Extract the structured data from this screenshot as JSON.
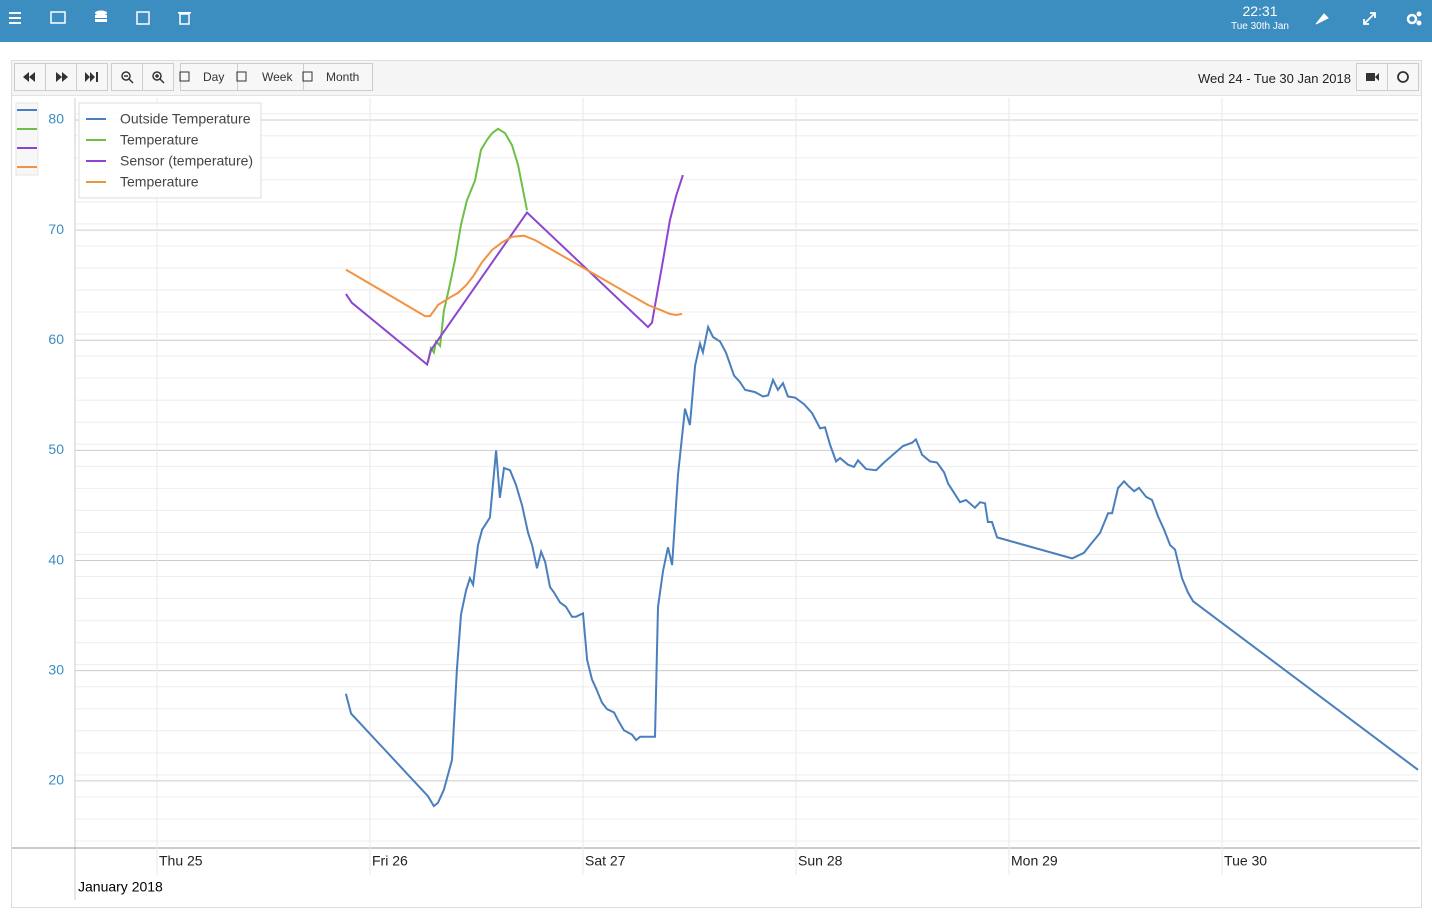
{
  "header": {
    "time": "22:31",
    "date": "Tue 30th Jan"
  },
  "toolbar": {
    "buttons": [
      "Day",
      "Week",
      "Month"
    ],
    "range": "Wed 24 - Tue 30 Jan 2018"
  },
  "chart_data": {
    "type": "line",
    "x_axis_label": "January 2018",
    "xlim": [
      24.615,
      30.92
    ],
    "xticks": [
      {
        "value": 25,
        "label": "Thu 25"
      },
      {
        "value": 26,
        "label": "Fri 26"
      },
      {
        "value": 27,
        "label": "Sat 27"
      },
      {
        "value": 28,
        "label": "Sun 28"
      },
      {
        "value": 29,
        "label": "Mon 29"
      },
      {
        "value": 30,
        "label": "Tue 30"
      }
    ],
    "ylim": [
      13.9,
      82
    ],
    "yticks": [
      20,
      30,
      40,
      50,
      60,
      70,
      80
    ],
    "grid": true,
    "legend": "top-left",
    "series": [
      {
        "name": "Outside Temperature",
        "color": "#4a7fbd",
        "x": [
          25.887,
          25.911,
          26.272,
          26.3,
          26.319,
          26.347,
          26.385,
          26.408,
          26.427,
          26.451,
          26.469,
          26.484,
          26.507,
          26.526,
          26.563,
          26.592,
          26.61,
          26.629,
          26.657,
          26.685,
          26.714,
          26.742,
          26.761,
          26.784,
          26.803,
          26.822,
          26.845,
          26.864,
          26.892,
          26.92,
          26.948,
          26.967,
          27.0,
          27.019,
          27.042,
          27.061,
          27.089,
          27.113,
          27.146,
          27.164,
          27.192,
          27.23,
          27.249,
          27.268,
          27.338,
          27.352,
          27.376,
          27.399,
          27.418,
          27.446,
          27.479,
          27.502,
          27.526,
          27.549,
          27.563,
          27.587,
          27.61,
          27.643,
          27.671,
          27.709,
          27.737,
          27.761,
          27.808,
          27.845,
          27.869,
          27.892,
          27.915,
          27.939,
          27.962,
          27.995,
          28.038,
          28.075,
          28.113,
          28.136,
          28.16,
          28.188,
          28.207,
          28.244,
          28.272,
          28.291,
          28.329,
          28.376,
          28.413,
          28.455,
          28.502,
          28.545,
          28.563,
          28.592,
          28.629,
          28.662,
          28.695,
          28.714,
          28.737,
          28.77,
          28.798,
          28.84,
          28.864,
          28.887,
          28.901,
          28.92,
          28.944,
          29.296,
          29.352,
          29.38,
          29.427,
          29.465,
          29.484,
          29.512,
          29.54,
          29.559,
          29.587,
          29.61,
          29.643,
          29.671,
          29.7,
          29.728,
          29.756,
          29.779,
          29.812,
          29.84,
          29.864,
          30.92
        ],
        "values": [
          27.9,
          26.1,
          18.6,
          17.7,
          18.0,
          19.2,
          21.9,
          30.1,
          35.1,
          37.3,
          38.4,
          37.8,
          41.4,
          42.8,
          43.9,
          50.0,
          45.7,
          48.4,
          48.2,
          46.9,
          45.0,
          42.5,
          41.4,
          39.3,
          40.8,
          39.9,
          37.6,
          37.1,
          36.2,
          35.8,
          34.9,
          34.9,
          35.2,
          31.0,
          29.2,
          28.4,
          27.1,
          26.5,
          26.2,
          25.5,
          24.6,
          24.2,
          23.7,
          24.0,
          24.0,
          35.8,
          39.1,
          41.2,
          39.6,
          47.8,
          53.8,
          52.3,
          57.7,
          59.7,
          58.9,
          61.2,
          60.3,
          59.9,
          58.9,
          56.8,
          56.2,
          55.5,
          55.3,
          54.9,
          55.0,
          56.4,
          55.5,
          56.1,
          54.9,
          54.8,
          54.2,
          53.4,
          52.0,
          52.1,
          50.5,
          49.0,
          49.3,
          48.7,
          48.5,
          49.1,
          48.3,
          48.2,
          48.9,
          49.6,
          50.4,
          50.7,
          51.0,
          49.6,
          49.0,
          48.9,
          48.0,
          47.0,
          46.3,
          45.3,
          45.5,
          44.8,
          45.3,
          45.2,
          43.5,
          43.5,
          42.1,
          40.2,
          40.7,
          41.4,
          42.5,
          44.3,
          44.3,
          46.6,
          47.2,
          46.8,
          46.3,
          46.6,
          45.8,
          45.5,
          44.0,
          42.8,
          41.4,
          41.0,
          38.4,
          37.1,
          36.3,
          21.0
        ]
      },
      {
        "name": "Temperature",
        "color": "#6cbf47",
        "x": [
          26.272,
          26.286,
          26.3,
          26.31,
          26.329,
          26.347,
          26.371,
          26.399,
          26.427,
          26.455,
          26.493,
          26.521,
          26.549,
          26.573,
          26.601,
          26.634,
          26.667,
          26.695,
          26.737
        ],
        "values": [
          58.0,
          59.3,
          58.9,
          59.9,
          59.5,
          62.7,
          64.7,
          67.3,
          70.5,
          72.7,
          74.5,
          77.3,
          78.2,
          78.8,
          79.2,
          78.8,
          77.7,
          75.9,
          71.8
        ]
      },
      {
        "name": "Sensor (temperature)",
        "color": "#8d45cf",
        "x": [
          25.887,
          25.915,
          26.268,
          26.286,
          26.737,
          27.305,
          27.324,
          27.352,
          27.376,
          27.408,
          27.437,
          27.469
        ],
        "values": [
          64.2,
          63.4,
          57.8,
          59.1,
          71.6,
          61.2,
          61.6,
          64.7,
          67.3,
          70.9,
          73.1,
          75.0
        ]
      },
      {
        "name": "Temperature",
        "color": "#f39240",
        "x": [
          25.887,
          25.915,
          26.258,
          26.282,
          26.319,
          26.376,
          26.413,
          26.451,
          26.484,
          26.526,
          26.573,
          26.62,
          26.667,
          26.723,
          26.775,
          27.305,
          27.371,
          27.408,
          27.437,
          27.465
        ],
        "values": [
          66.4,
          66.1,
          62.2,
          62.2,
          63.2,
          63.9,
          64.3,
          65.0,
          65.8,
          67.1,
          68.2,
          68.9,
          69.4,
          69.5,
          69.1,
          63.2,
          62.7,
          62.4,
          62.3,
          62.4
        ]
      }
    ]
  }
}
